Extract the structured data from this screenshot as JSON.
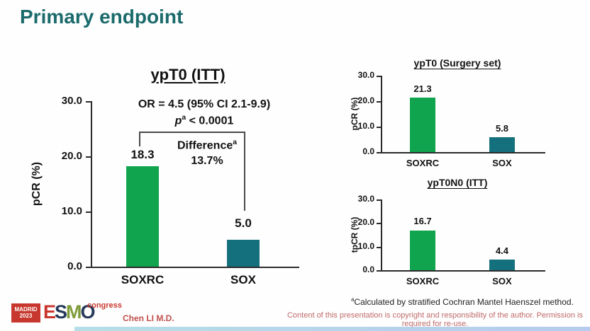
{
  "slide": {
    "title": "Primary endpoint",
    "presenter": "Chen LI M.D.",
    "copyright": "Content of this presentation is copyright and responsibility of the author. Permission is required for re-use.",
    "footnote": {
      "sup": "a",
      "text": "Calculated by stratified Cochran Mantel Haenszel method."
    }
  },
  "logo": {
    "badge_line1": "MADRID",
    "badge_line2": "2023",
    "letter_e": "E",
    "letter_s": "S",
    "letter_m": "M",
    "letter_o": "O",
    "congress": "congress"
  },
  "annotation": {
    "or_line": "OR = 4.5 (95% CI 2.1-9.9)",
    "p_italic": "p",
    "p_sup": "a",
    "p_rest": " < 0.0001",
    "diff_word": "Difference",
    "diff_sup": "a",
    "diff_value": "13.7%"
  },
  "colors": {
    "title_teal": "#1b6a6c",
    "bar_green": "#10a44e",
    "bar_teal": "#15707d",
    "logo_red": "#c8372d",
    "red_text": "#c0504d"
  },
  "chart_data": [
    {
      "type": "bar",
      "title": "ypT0 (ITT)",
      "ylabel": "pCR (%)",
      "categories": [
        "SOXRC",
        "SOX"
      ],
      "values": [
        18.3,
        5.0
      ],
      "value_labels": [
        "18.3",
        "5.0"
      ],
      "yticks": [
        "30.0",
        "20.0",
        "10.0",
        "0.0"
      ],
      "ylim": [
        0,
        30
      ],
      "grid": false,
      "legend": "none"
    },
    {
      "type": "bar",
      "title": "ypT0 (Surgery set)",
      "ylabel": "pCR (%)",
      "categories": [
        "SOXRC",
        "SOX"
      ],
      "values": [
        21.3,
        5.8
      ],
      "value_labels": [
        "21.3",
        "5.8"
      ],
      "yticks": [
        "30.0",
        "20.0",
        "10.0",
        "0.0"
      ],
      "ylim": [
        0,
        30
      ],
      "grid": false,
      "legend": "none"
    },
    {
      "type": "bar",
      "title": "ypT0N0 (ITT)",
      "ylabel": "tpCR (%)",
      "categories": [
        "SOXRC",
        "SOX"
      ],
      "values": [
        16.7,
        4.4
      ],
      "value_labels": [
        "16.7",
        "4.4"
      ],
      "yticks": [
        "30.0",
        "20.0",
        "10.0",
        "0.0"
      ],
      "ylim": [
        0,
        30
      ],
      "grid": false,
      "legend": "none"
    }
  ]
}
